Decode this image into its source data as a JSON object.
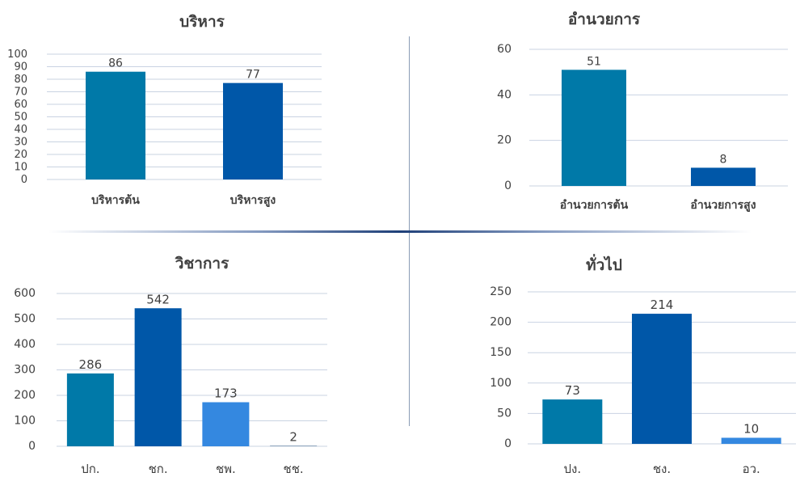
{
  "chart_data": [
    {
      "type": "bar",
      "title": "บริหาร",
      "categories": [
        "บริหารต้น",
        "บริหารสูง"
      ],
      "values": [
        86,
        77
      ],
      "colors": [
        "#0079a8",
        "#0057a8"
      ],
      "ylim": [
        0,
        100
      ],
      "yticks": [
        0,
        10,
        20,
        30,
        40,
        50,
        60,
        70,
        80,
        90,
        100
      ],
      "grid": true,
      "xlabel_bold": true
    },
    {
      "type": "bar",
      "title": "อำนวยการ",
      "categories": [
        "อำนวยการต้น",
        "อำนวยการสูง"
      ],
      "values": [
        51,
        8
      ],
      "colors": [
        "#0079a8",
        "#0057a8"
      ],
      "ylim": [
        0,
        60
      ],
      "yticks": [
        0,
        20,
        40,
        60
      ],
      "grid": true,
      "xlabel_bold": true
    },
    {
      "type": "bar",
      "title": "วิชาการ",
      "categories": [
        "ปก.",
        "ชก.",
        "ชพ.",
        "ชช."
      ],
      "values": [
        286,
        542,
        173,
        2
      ],
      "colors": [
        "#0079a8",
        "#0057a8",
        "#3488e0",
        "#56789c"
      ],
      "ylim": [
        0,
        600
      ],
      "yticks": [
        0,
        100,
        200,
        300,
        400,
        500,
        600
      ],
      "grid": true,
      "xlabel_bold": false
    },
    {
      "type": "bar",
      "title": "ทั่วไป",
      "categories": [
        "ปง.",
        "ชง.",
        "อว."
      ],
      "values": [
        73,
        214,
        10
      ],
      "colors": [
        "#0079a8",
        "#0057a8",
        "#3488e0"
      ],
      "ylim": [
        0,
        250
      ],
      "yticks": [
        0,
        50,
        100,
        150,
        200,
        250
      ],
      "grid": true,
      "xlabel_bold": false
    }
  ]
}
